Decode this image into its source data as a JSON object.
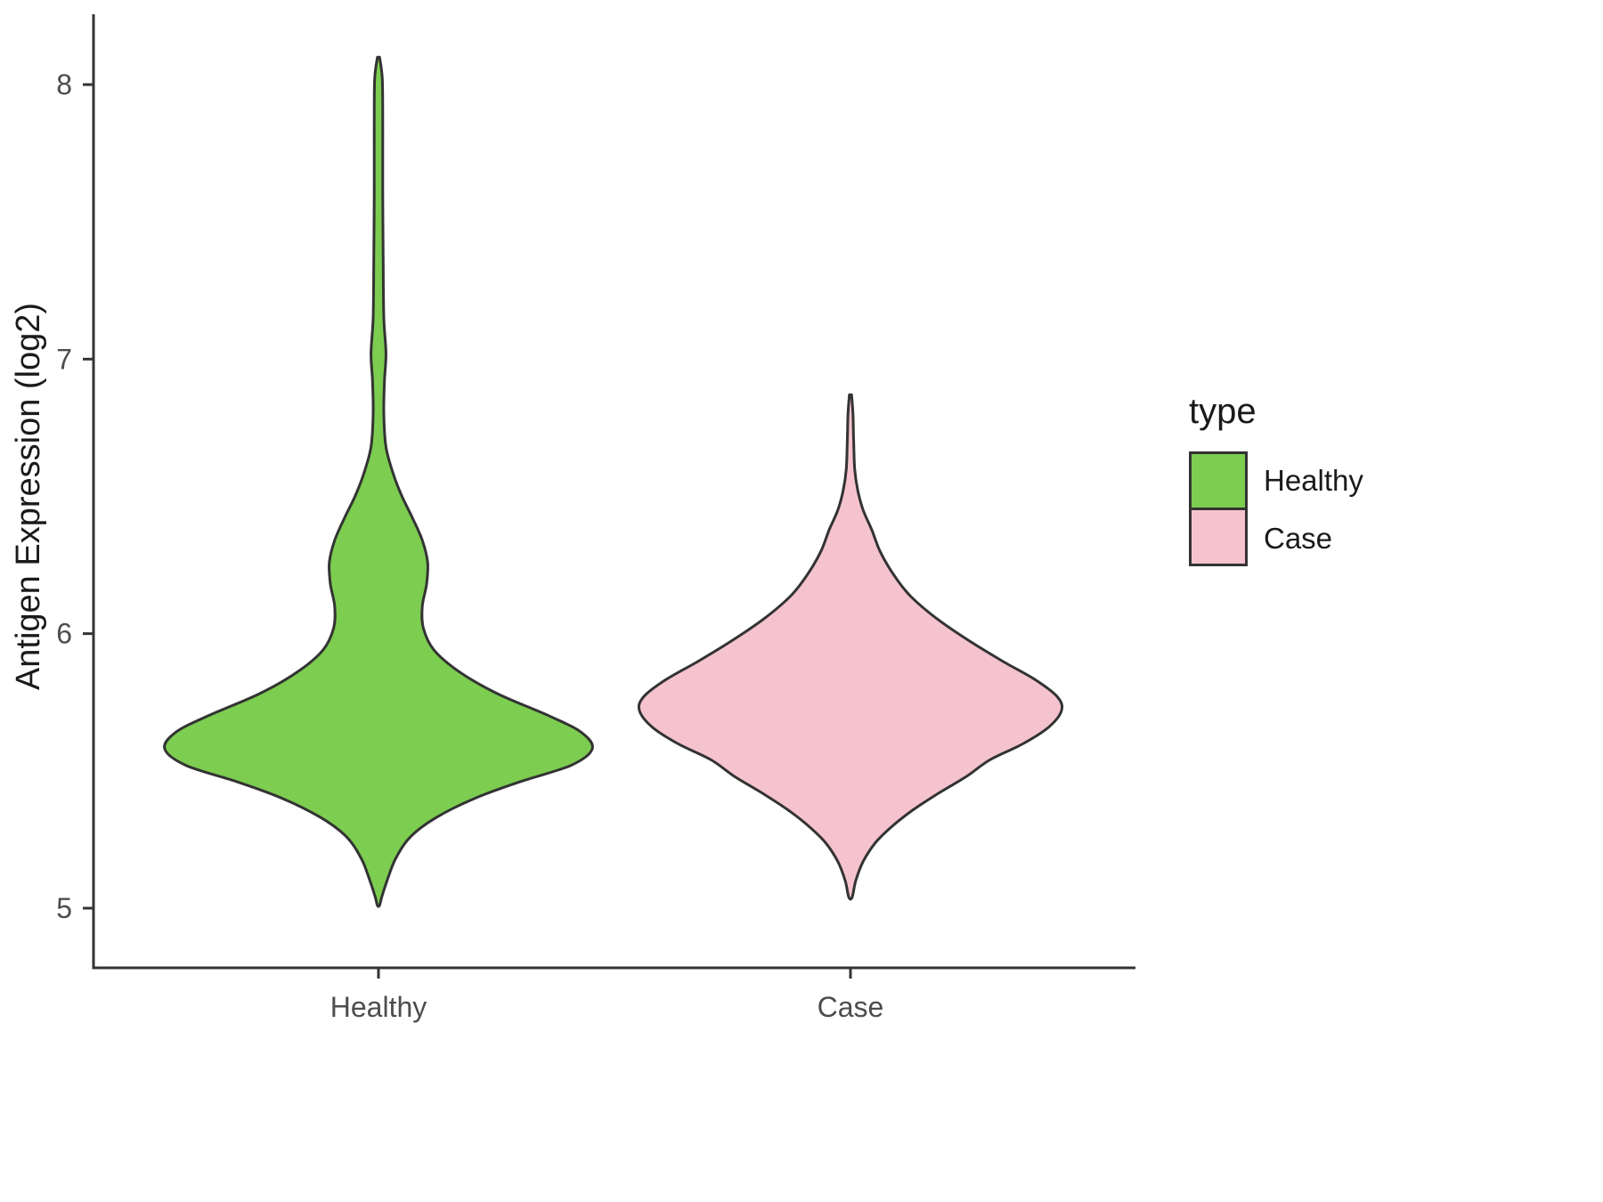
{
  "chart_data": {
    "type": "violin",
    "title": "",
    "xlabel": "",
    "ylabel": "Antigen Expression (log2)",
    "categories": [
      "Healthy",
      "Case"
    ],
    "y_ticks": [
      5,
      6,
      7,
      8
    ],
    "ylim": [
      4.78,
      8.25
    ],
    "grid": "off",
    "legend_position": "right",
    "legend": {
      "title": "type",
      "entries": [
        {
          "label": "Healthy",
          "color": "#7CCD50"
        },
        {
          "label": "Case",
          "color": "#F5C3CE"
        }
      ]
    },
    "outline_color": "#333333",
    "axis_color": "#333333",
    "tick_label_color": "#4D4D4D",
    "series": [
      {
        "name": "Healthy",
        "fill": "#7CCD50",
        "value_range": [
          5.01,
          8.1
        ],
        "profile": [
          [
            8.1,
            0.005
          ],
          [
            8.02,
            0.018
          ],
          [
            7.85,
            0.02
          ],
          [
            7.6,
            0.02
          ],
          [
            7.35,
            0.022
          ],
          [
            7.15,
            0.025
          ],
          [
            7.02,
            0.035
          ],
          [
            6.92,
            0.028
          ],
          [
            6.8,
            0.025
          ],
          [
            6.68,
            0.035
          ],
          [
            6.58,
            0.07
          ],
          [
            6.5,
            0.11
          ],
          [
            6.42,
            0.16
          ],
          [
            6.34,
            0.205
          ],
          [
            6.26,
            0.23
          ],
          [
            6.18,
            0.225
          ],
          [
            6.1,
            0.205
          ],
          [
            6.02,
            0.21
          ],
          [
            5.94,
            0.26
          ],
          [
            5.86,
            0.38
          ],
          [
            5.78,
            0.56
          ],
          [
            5.7,
            0.8
          ],
          [
            5.64,
            0.95
          ],
          [
            5.58,
            1.0
          ],
          [
            5.52,
            0.9
          ],
          [
            5.46,
            0.66
          ],
          [
            5.4,
            0.45
          ],
          [
            5.33,
            0.27
          ],
          [
            5.26,
            0.15
          ],
          [
            5.18,
            0.08
          ],
          [
            5.1,
            0.04
          ],
          [
            5.04,
            0.015
          ],
          [
            5.01,
            0.005
          ]
        ]
      },
      {
        "name": "Case",
        "fill": "#F5C3CE",
        "value_range": [
          5.03,
          6.87
        ],
        "profile": [
          [
            6.87,
            0.005
          ],
          [
            6.8,
            0.012
          ],
          [
            6.7,
            0.015
          ],
          [
            6.6,
            0.02
          ],
          [
            6.52,
            0.035
          ],
          [
            6.45,
            0.06
          ],
          [
            6.38,
            0.1
          ],
          [
            6.3,
            0.14
          ],
          [
            6.22,
            0.2
          ],
          [
            6.14,
            0.28
          ],
          [
            6.06,
            0.4
          ],
          [
            5.98,
            0.55
          ],
          [
            5.9,
            0.72
          ],
          [
            5.83,
            0.88
          ],
          [
            5.77,
            0.98
          ],
          [
            5.72,
            1.0
          ],
          [
            5.66,
            0.94
          ],
          [
            5.6,
            0.82
          ],
          [
            5.54,
            0.66
          ],
          [
            5.48,
            0.55
          ],
          [
            5.42,
            0.42
          ],
          [
            5.36,
            0.3
          ],
          [
            5.3,
            0.2
          ],
          [
            5.24,
            0.12
          ],
          [
            5.17,
            0.06
          ],
          [
            5.1,
            0.025
          ],
          [
            5.04,
            0.008
          ]
        ]
      }
    ]
  }
}
